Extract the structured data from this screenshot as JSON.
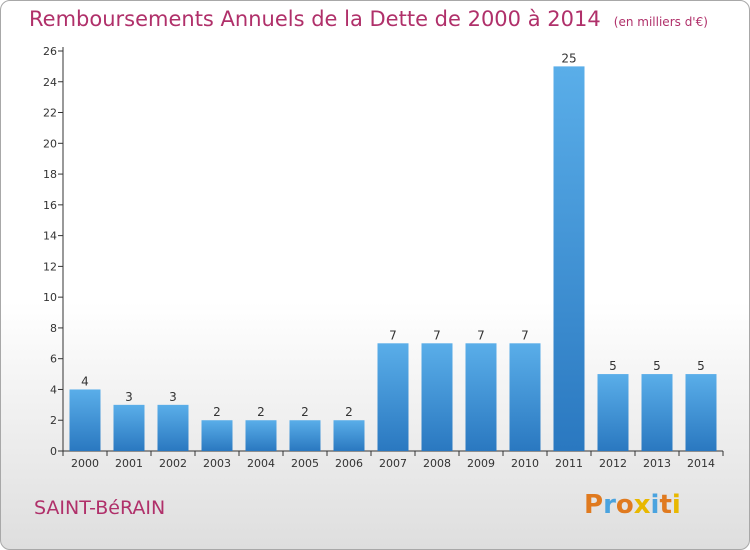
{
  "header": {
    "title": "Remboursements Annuels de la Dette de 2000 à 2014",
    "unit": "(en milliers d'€)"
  },
  "footer": {
    "commune": "SAINT-BéRAIN",
    "brand": "Proxiti"
  },
  "colors": {
    "bar": "#3d8fd4",
    "title": "#b0306a",
    "axis": "#333333",
    "brand_letters": [
      "#e07a1f",
      "#4aa3df",
      "#e07a1f",
      "#e8b800",
      "#4aa3df",
      "#e07a1f",
      "#e8b800"
    ]
  },
  "chart_data": {
    "type": "bar",
    "title": "Remboursements Annuels de la Dette de 2000 à 2014",
    "subtitle": "(en milliers d'€)",
    "categories": [
      "2000",
      "2001",
      "2002",
      "2003",
      "2004",
      "2005",
      "2006",
      "2007",
      "2008",
      "2009",
      "2010",
      "2011",
      "2012",
      "2013",
      "2014"
    ],
    "values": [
      4,
      3,
      3,
      2,
      2,
      2,
      2,
      7,
      7,
      7,
      7,
      25,
      5,
      5,
      5
    ],
    "data_labels": [
      "4",
      "3",
      "3",
      "2",
      "2",
      "2",
      "2",
      "7",
      "7",
      "7",
      "7",
      "25",
      "5",
      "5",
      "5"
    ],
    "y_ticks": [
      0,
      2,
      4,
      6,
      8,
      10,
      12,
      14,
      16,
      18,
      20,
      22,
      24,
      26
    ],
    "ylim": [
      0,
      26
    ],
    "grid": false,
    "legend": "none"
  }
}
